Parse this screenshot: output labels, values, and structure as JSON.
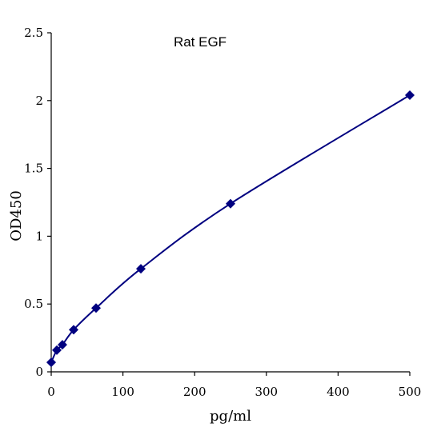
{
  "chart_data": {
    "type": "scatter",
    "title": "Rat   EGF",
    "xlabel": "pg/ml",
    "ylabel": "OD450",
    "xlim": [
      0,
      500
    ],
    "ylim": [
      0,
      2.5
    ],
    "x_ticks": [
      0,
      100,
      200,
      300,
      400,
      500
    ],
    "x_tick_labels": [
      "0",
      "100",
      "200",
      "300",
      "400",
      "500"
    ],
    "y_ticks": [
      0,
      0.5,
      1,
      1.5,
      2,
      2.5
    ],
    "y_tick_labels": [
      "0",
      "0.5",
      "1",
      "1.5",
      "2",
      "2.5"
    ],
    "grid": false,
    "legend": "none",
    "marker": "diamond",
    "color": "#000080",
    "series": [
      {
        "x": [
          0,
          7.8,
          15.6,
          31.25,
          62.5,
          125,
          250,
          500
        ],
        "y": [
          0.07,
          0.16,
          0.2,
          0.31,
          0.47,
          0.76,
          1.24,
          2.04
        ],
        "fit": "smooth-curve"
      }
    ]
  }
}
